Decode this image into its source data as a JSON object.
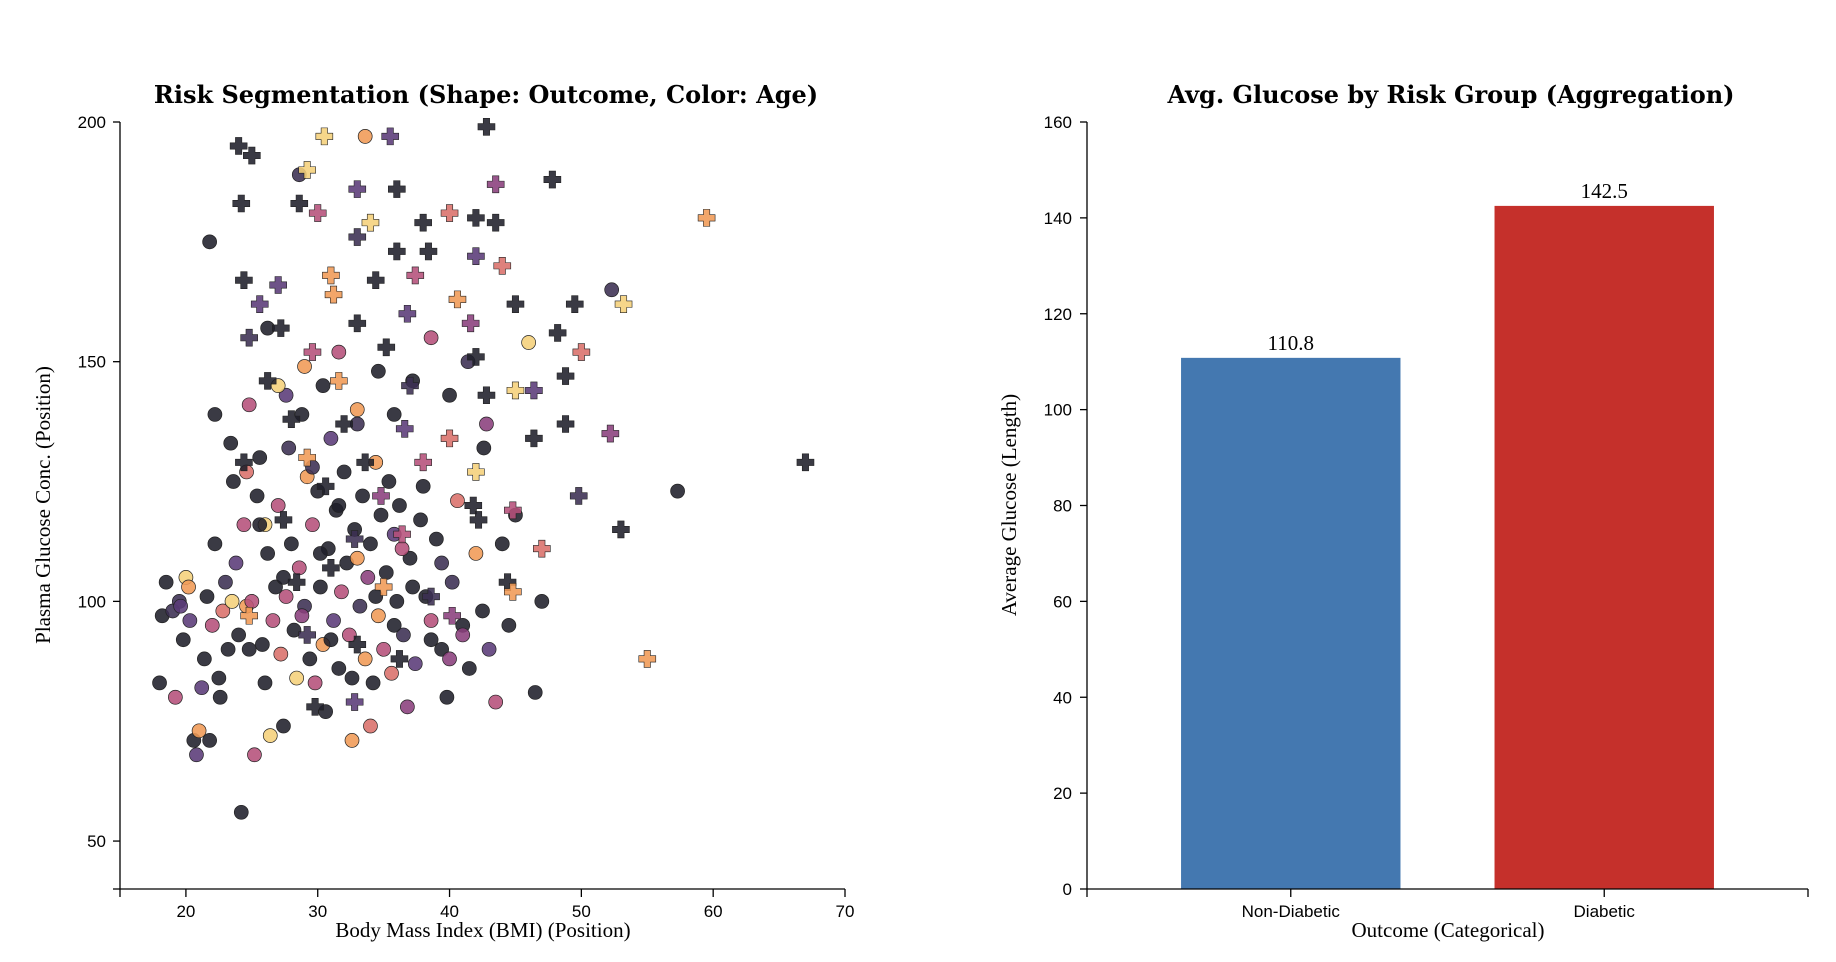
{
  "chart_data": [
    {
      "type": "scatter",
      "title": "Risk Segmentation (Shape: Outcome, Color: Age)",
      "xlabel": "Body Mass Index (BMI) (Position)",
      "ylabel": "Plasma Glucose Conc. (Position)",
      "xlim": [
        15,
        70
      ],
      "ylim": [
        40,
        200
      ],
      "xticks": [
        "20",
        "30",
        "40",
        "50",
        "60",
        "70"
      ],
      "yticks": [
        "50",
        "100",
        "150",
        "200"
      ],
      "shape_encoding": {
        "Non-Diabetic": "circle",
        "Diabetic": "cross"
      },
      "color_encoding": "Age (sequential: dark = younger, light = older)",
      "colors": [
        "#1f1f2a",
        "#3b2f52",
        "#5a3a78",
        "#8a3f7c",
        "#b5507a",
        "#d9706a",
        "#f09a55",
        "#f5d07a"
      ],
      "series": [
        {
          "shape": "circle",
          "points": [
            [
              18.2,
              97
            ],
            [
              18.5,
              104
            ],
            [
              19.2,
              80
            ],
            [
              19.5,
              100
            ],
            [
              19.8,
              92
            ],
            [
              20.0,
              105
            ],
            [
              20.3,
              96
            ],
            [
              20.6,
              71
            ],
            [
              21.0,
              73
            ],
            [
              21.2,
              82
            ],
            [
              21.6,
              101
            ],
            [
              21.8,
              71
            ],
            [
              22.0,
              95
            ],
            [
              22.2,
              112
            ],
            [
              22.5,
              84
            ],
            [
              22.8,
              98
            ],
            [
              23.0,
              104
            ],
            [
              23.2,
              90
            ],
            [
              23.5,
              100
            ],
            [
              23.8,
              108
            ],
            [
              24.0,
              93
            ],
            [
              24.2,
              56
            ],
            [
              24.4,
              116
            ],
            [
              24.6,
              99
            ],
            [
              24.8,
              90
            ],
            [
              25.0,
              100
            ],
            [
              25.2,
              68
            ],
            [
              25.4,
              122
            ],
            [
              25.6,
              130
            ],
            [
              25.8,
              91
            ],
            [
              26.0,
              83
            ],
            [
              26.2,
              110
            ],
            [
              26.4,
              72
            ],
            [
              26.6,
              96
            ],
            [
              26.8,
              103
            ],
            [
              27.0,
              120
            ],
            [
              27.2,
              89
            ],
            [
              27.4,
              74
            ],
            [
              27.6,
              101
            ],
            [
              27.8,
              132
            ],
            [
              28.0,
              112
            ],
            [
              28.2,
              94
            ],
            [
              28.4,
              84
            ],
            [
              28.6,
              107
            ],
            [
              28.8,
              139
            ],
            [
              29.0,
              99
            ],
            [
              29.2,
              126
            ],
            [
              29.4,
              88
            ],
            [
              29.6,
              116
            ],
            [
              29.8,
              83
            ],
            [
              30.0,
              123
            ],
            [
              30.2,
              103
            ],
            [
              30.4,
              91
            ],
            [
              30.6,
              77
            ],
            [
              30.8,
              111
            ],
            [
              31.0,
              134
            ],
            [
              31.2,
              96
            ],
            [
              31.4,
              119
            ],
            [
              31.6,
              86
            ],
            [
              31.8,
              102
            ],
            [
              32.0,
              127
            ],
            [
              32.2,
              108
            ],
            [
              32.4,
              93
            ],
            [
              32.6,
              71
            ],
            [
              32.8,
              115
            ],
            [
              33.0,
              137
            ],
            [
              33.2,
              99
            ],
            [
              33.4,
              122
            ],
            [
              33.6,
              88
            ],
            [
              33.8,
              105
            ],
            [
              34.0,
              112
            ],
            [
              34.2,
              83
            ],
            [
              34.4,
              129
            ],
            [
              34.6,
              97
            ],
            [
              34.8,
              118
            ],
            [
              35.0,
              90
            ],
            [
              35.2,
              106
            ],
            [
              35.4,
              125
            ],
            [
              35.6,
              85
            ],
            [
              35.8,
              114
            ],
            [
              36.0,
              100
            ],
            [
              36.2,
              120
            ],
            [
              36.5,
              93
            ],
            [
              36.8,
              78
            ],
            [
              37.0,
              109
            ],
            [
              37.4,
              87
            ],
            [
              37.8,
              117
            ],
            [
              38.2,
              101
            ],
            [
              38.6,
              96
            ],
            [
              39.0,
              113
            ],
            [
              39.4,
              90
            ],
            [
              39.8,
              80
            ],
            [
              40.2,
              104
            ],
            [
              40.6,
              121
            ],
            [
              41.0,
              95
            ],
            [
              41.5,
              86
            ],
            [
              42.0,
              110
            ],
            [
              42.5,
              98
            ],
            [
              43.0,
              90
            ],
            [
              43.5,
              79
            ],
            [
              44.0,
              112
            ],
            [
              44.5,
              95
            ],
            [
              45.0,
              118
            ],
            [
              46.0,
              154
            ],
            [
              46.5,
              81
            ],
            [
              47.0,
              100
            ],
            [
              52.3,
              165
            ],
            [
              57.3,
              123
            ],
            [
              19.0,
              98
            ],
            [
              20.8,
              68
            ],
            [
              21.4,
              88
            ],
            [
              22.6,
              80
            ],
            [
              23.6,
              125
            ],
            [
              24.8,
              141
            ],
            [
              26.2,
              157
            ],
            [
              27.6,
              143
            ],
            [
              29.0,
              149
            ],
            [
              30.4,
              145
            ],
            [
              31.6,
              152
            ],
            [
              33.0,
              140
            ],
            [
              34.6,
              148
            ],
            [
              35.8,
              139
            ],
            [
              37.2,
              146
            ],
            [
              38.6,
              155
            ],
            [
              40.0,
              143
            ],
            [
              41.4,
              150
            ],
            [
              42.8,
              137
            ],
            [
              21.8,
              175
            ],
            [
              33.6,
              197
            ],
            [
              28.6,
              189
            ],
            [
              22.2,
              139
            ],
            [
              23.4,
              133
            ],
            [
              24.6,
              127
            ],
            [
              26.0,
              116
            ],
            [
              27.4,
              105
            ],
            [
              28.8,
              97
            ],
            [
              30.2,
              110
            ],
            [
              31.6,
              120
            ],
            [
              33.0,
              109
            ],
            [
              34.4,
              101
            ],
            [
              35.8,
              95
            ],
            [
              37.2,
              103
            ],
            [
              38.6,
              92
            ],
            [
              40.0,
              88
            ],
            [
              18.0,
              83
            ],
            [
              19.6,
              99
            ],
            [
              20.2,
              103
            ],
            [
              25.6,
              116
            ],
            [
              27.0,
              145
            ],
            [
              29.6,
              128
            ],
            [
              31.0,
              92
            ],
            [
              32.6,
              84
            ],
            [
              34.0,
              74
            ],
            [
              36.4,
              111
            ],
            [
              38.0,
              124
            ],
            [
              39.4,
              108
            ],
            [
              41.0,
              93
            ],
            [
              42.6,
              132
            ]
          ]
        },
        {
          "shape": "cross",
          "points": [
            [
              24.0,
              195
            ],
            [
              25.0,
              193
            ],
            [
              30.5,
              197
            ],
            [
              35.5,
              197
            ],
            [
              42.8,
              199
            ],
            [
              29.2,
              190
            ],
            [
              33.0,
              186
            ],
            [
              36.0,
              186
            ],
            [
              47.8,
              188
            ],
            [
              43.5,
              187
            ],
            [
              24.2,
              183
            ],
            [
              28.6,
              183
            ],
            [
              30.0,
              181
            ],
            [
              34.0,
              179
            ],
            [
              38.0,
              179
            ],
            [
              40.0,
              181
            ],
            [
              42.0,
              180
            ],
            [
              43.5,
              179
            ],
            [
              59.5,
              180
            ],
            [
              33.0,
              176
            ],
            [
              36.0,
              173
            ],
            [
              38.4,
              173
            ],
            [
              42.0,
              172
            ],
            [
              44.0,
              170
            ],
            [
              24.4,
              167
            ],
            [
              27.0,
              166
            ],
            [
              31.0,
              168
            ],
            [
              34.4,
              167
            ],
            [
              37.4,
              168
            ],
            [
              40.6,
              163
            ],
            [
              45.0,
              162
            ],
            [
              49.5,
              162
            ],
            [
              53.2,
              162
            ],
            [
              25.6,
              162
            ],
            [
              27.2,
              157
            ],
            [
              33.0,
              158
            ],
            [
              41.6,
              158
            ],
            [
              48.2,
              156
            ],
            [
              24.8,
              155
            ],
            [
              29.6,
              152
            ],
            [
              35.2,
              153
            ],
            [
              42.0,
              151
            ],
            [
              50.0,
              152
            ],
            [
              48.8,
              147
            ],
            [
              26.2,
              146
            ],
            [
              31.6,
              146
            ],
            [
              37.0,
              145
            ],
            [
              42.8,
              143
            ],
            [
              45.0,
              144
            ],
            [
              46.4,
              144
            ],
            [
              28.0,
              138
            ],
            [
              32.0,
              137
            ],
            [
              36.6,
              136
            ],
            [
              40.0,
              134
            ],
            [
              48.8,
              137
            ],
            [
              52.2,
              135
            ],
            [
              29.2,
              130
            ],
            [
              33.6,
              129
            ],
            [
              38.0,
              129
            ],
            [
              42.0,
              127
            ],
            [
              46.4,
              134
            ],
            [
              24.4,
              129
            ],
            [
              30.6,
              124
            ],
            [
              34.8,
              122
            ],
            [
              41.8,
              120
            ],
            [
              49.8,
              122
            ],
            [
              44.8,
              119
            ],
            [
              27.4,
              117
            ],
            [
              32.8,
              113
            ],
            [
              36.4,
              114
            ],
            [
              42.2,
              117
            ],
            [
              53.0,
              115
            ],
            [
              47.0,
              111
            ],
            [
              28.4,
              104
            ],
            [
              31.0,
              107
            ],
            [
              35.0,
              103
            ],
            [
              38.6,
              101
            ],
            [
              44.4,
              104
            ],
            [
              24.8,
              97
            ],
            [
              29.2,
              93
            ],
            [
              33.0,
              91
            ],
            [
              36.2,
              88
            ],
            [
              40.2,
              97
            ],
            [
              44.8,
              102
            ],
            [
              29.8,
              78
            ],
            [
              32.8,
              79
            ],
            [
              55.0,
              88
            ],
            [
              67.0,
              129
            ],
            [
              36.8,
              160
            ],
            [
              31.2,
              164
            ]
          ]
        }
      ],
      "grid": false
    },
    {
      "type": "bar",
      "title": "Avg. Glucose by Risk Group (Aggregation)",
      "xlabel": "Outcome (Categorical)",
      "ylabel": "Average Glucose (Length)",
      "categories": [
        "Non-Diabetic",
        "Diabetic"
      ],
      "values": [
        110.8,
        142.5
      ],
      "value_labels": [
        "110.8",
        "142.5"
      ],
      "bar_colors": [
        "#4478b0",
        "#c5302b"
      ],
      "ylim": [
        0,
        160
      ],
      "yticks": [
        "0",
        "20",
        "40",
        "60",
        "80",
        "100",
        "120",
        "140",
        "160"
      ],
      "grid": false
    }
  ]
}
